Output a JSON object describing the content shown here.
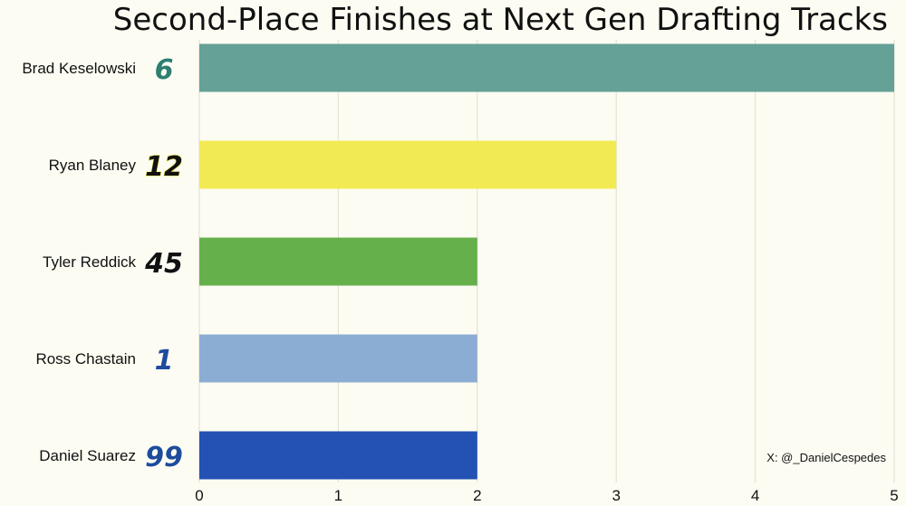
{
  "chart_data": {
    "type": "bar",
    "orientation": "horizontal",
    "title": "Second-Place Finishes at Next Gen Drafting Tracks",
    "categories": [
      "Brad Keselowski",
      "Ryan Blaney",
      "Tyler Reddick",
      "Ross Chastain",
      "Daniel Suarez"
    ],
    "car_numbers": [
      "6",
      "12",
      "45",
      "1",
      "99"
    ],
    "values": [
      5,
      3,
      2,
      2,
      2
    ],
    "bar_colors": [
      "#65a197",
      "#f2ea52",
      "#65b04b",
      "#8badd3",
      "#2352b4"
    ],
    "number_colors": [
      "#2e7f6f",
      "#111111",
      "#111111",
      "#1d4c9c",
      "#1d4c9c"
    ],
    "number_outline_colors": [
      "#ffffff",
      "#f2ea52",
      "#ffffff",
      "#ffffff",
      "#ffffff"
    ],
    "xlim": [
      0,
      5
    ],
    "xticks": [
      0,
      1,
      2,
      3,
      4,
      5
    ],
    "grid": true,
    "credit": "X: @_DanielCespedes"
  }
}
